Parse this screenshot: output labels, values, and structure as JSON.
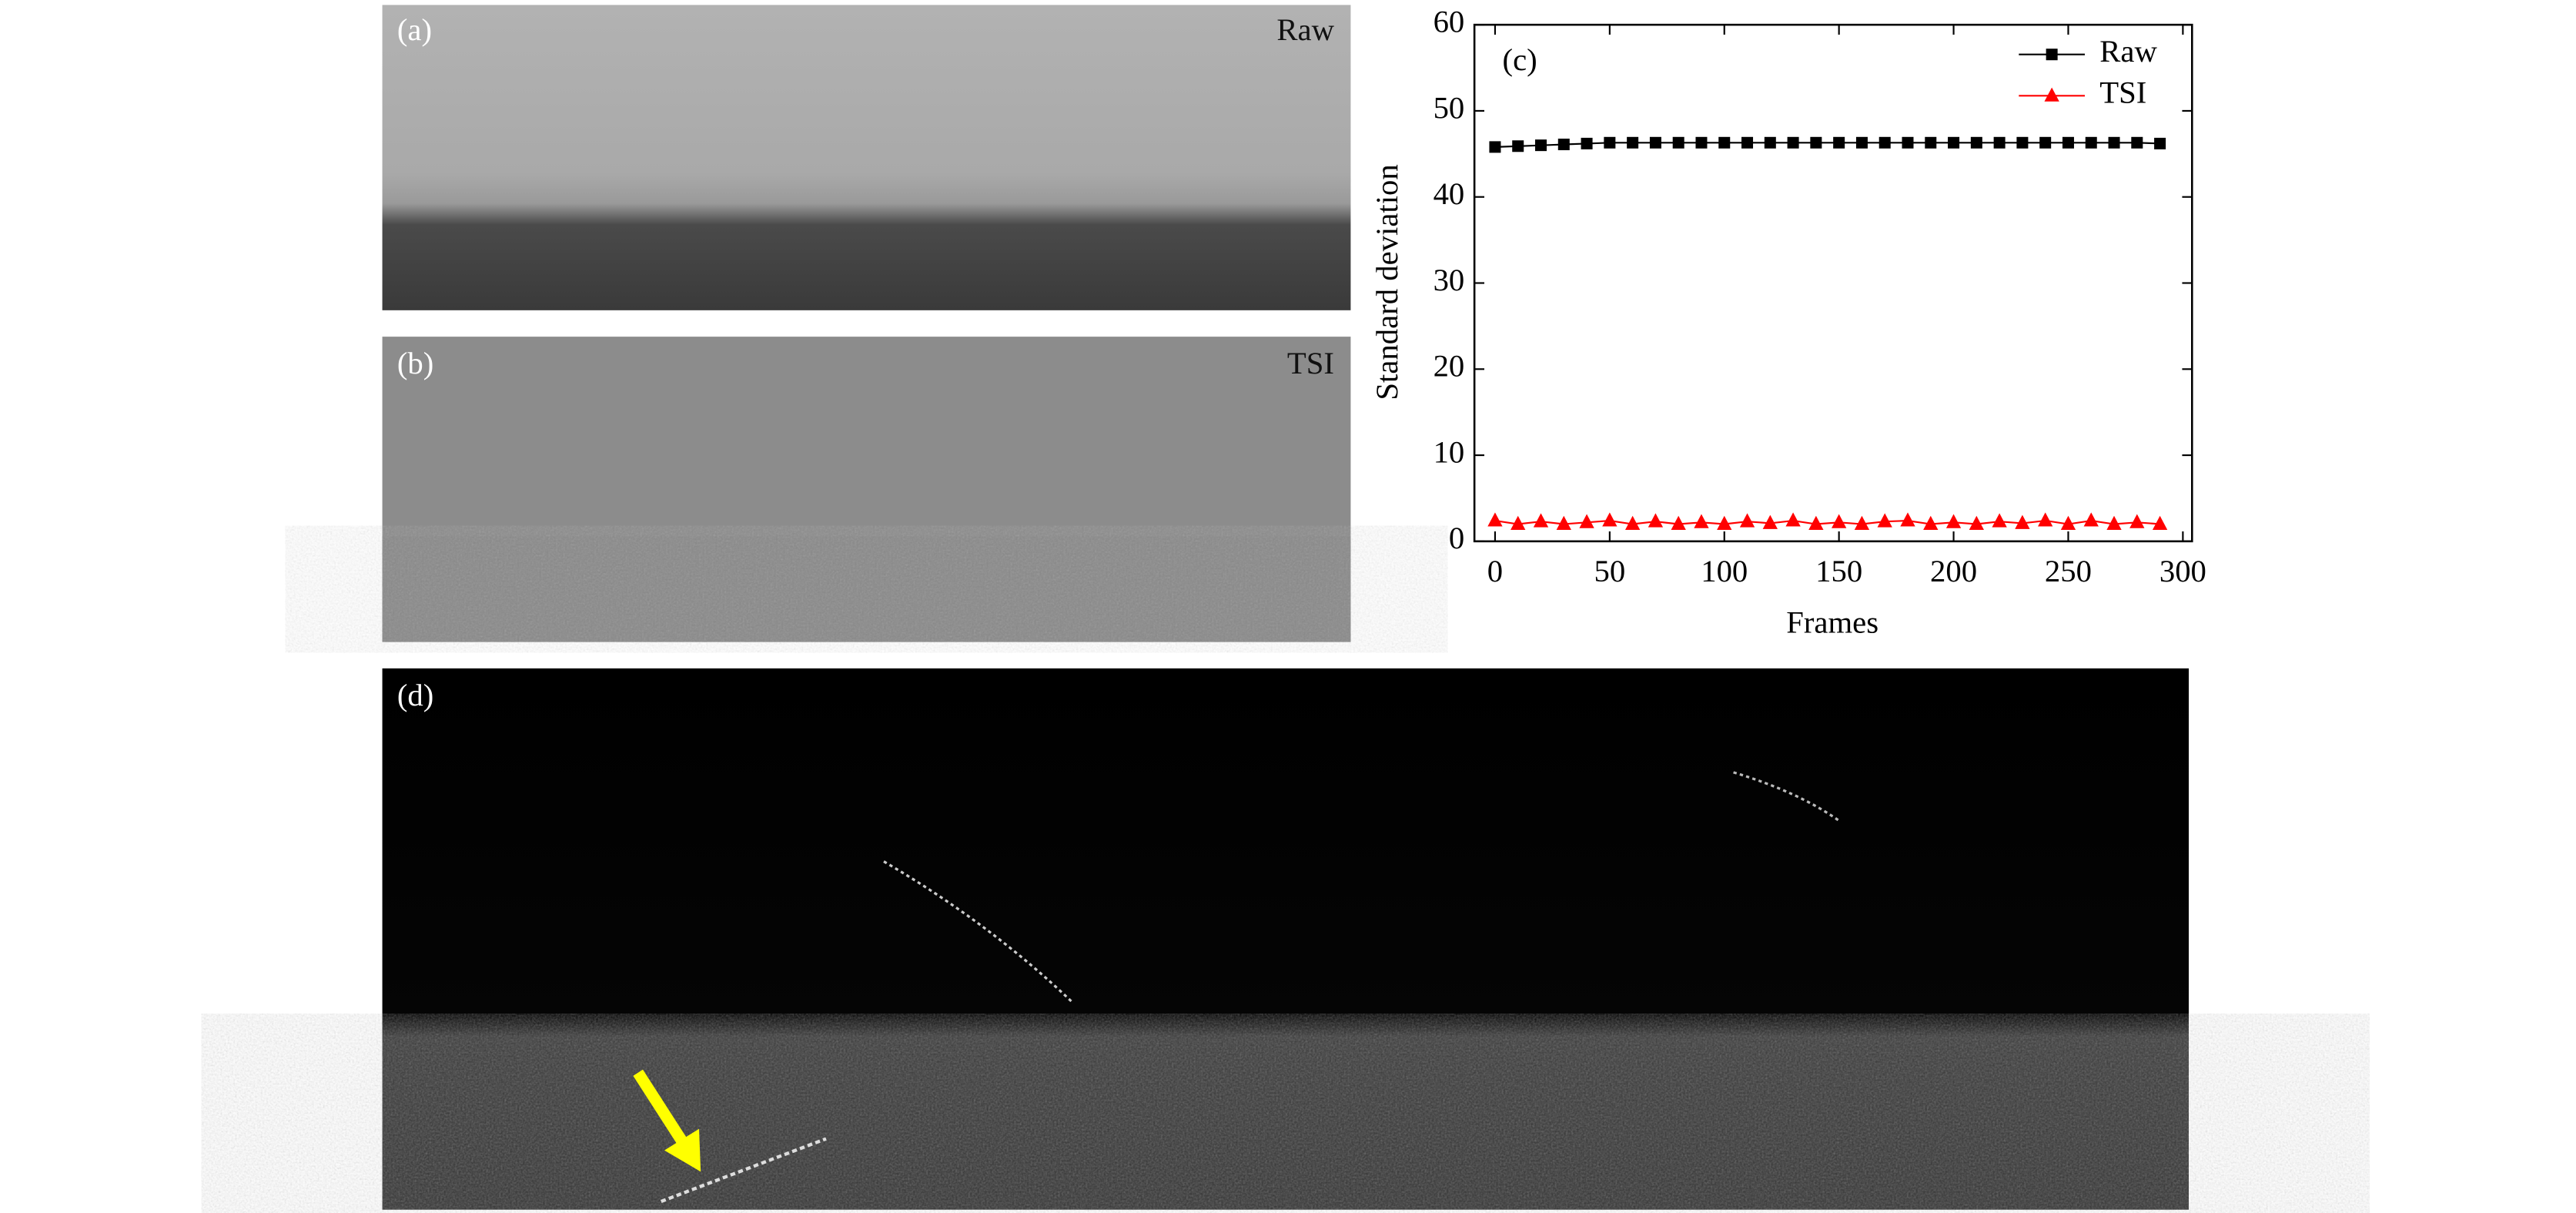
{
  "panels": {
    "a": {
      "label": "(a)",
      "tag": "Raw"
    },
    "b": {
      "label": "(b)",
      "tag": "TSI"
    },
    "d": {
      "label": "(d)"
    }
  },
  "chart_data": {
    "type": "line",
    "panel_label": "(c)",
    "xlabel": "Frames",
    "ylabel": "Standard deviation",
    "x": [
      0,
      10,
      20,
      30,
      40,
      50,
      60,
      70,
      80,
      90,
      100,
      110,
      120,
      130,
      140,
      150,
      160,
      170,
      180,
      190,
      200,
      210,
      220,
      230,
      240,
      250,
      260,
      270,
      280,
      290
    ],
    "series": [
      {
        "name": "Raw",
        "color": "#000000",
        "marker": "square",
        "values": [
          45.8,
          45.9,
          46.0,
          46.1,
          46.2,
          46.3,
          46.3,
          46.3,
          46.3,
          46.3,
          46.3,
          46.3,
          46.3,
          46.3,
          46.3,
          46.3,
          46.3,
          46.3,
          46.3,
          46.3,
          46.3,
          46.3,
          46.3,
          46.3,
          46.3,
          46.3,
          46.3,
          46.3,
          46.3,
          46.2
        ]
      },
      {
        "name": "TSI",
        "color": "#ff0000",
        "marker": "triangle",
        "values": [
          2.4,
          2.0,
          2.3,
          2.0,
          2.2,
          2.4,
          2.0,
          2.3,
          2.0,
          2.2,
          2.0,
          2.3,
          2.1,
          2.4,
          2.0,
          2.2,
          2.0,
          2.3,
          2.4,
          2.0,
          2.2,
          2.0,
          2.3,
          2.1,
          2.4,
          2.0,
          2.4,
          2.0,
          2.2,
          2.0
        ]
      }
    ],
    "xlim": [
      -9,
      304
    ],
    "ylim": [
      0,
      60
    ],
    "xticks": [
      0,
      50,
      100,
      150,
      200,
      250,
      300
    ],
    "yticks": [
      0,
      10,
      20,
      30,
      40,
      50,
      60
    ],
    "grid": false,
    "legend": "upper right"
  }
}
